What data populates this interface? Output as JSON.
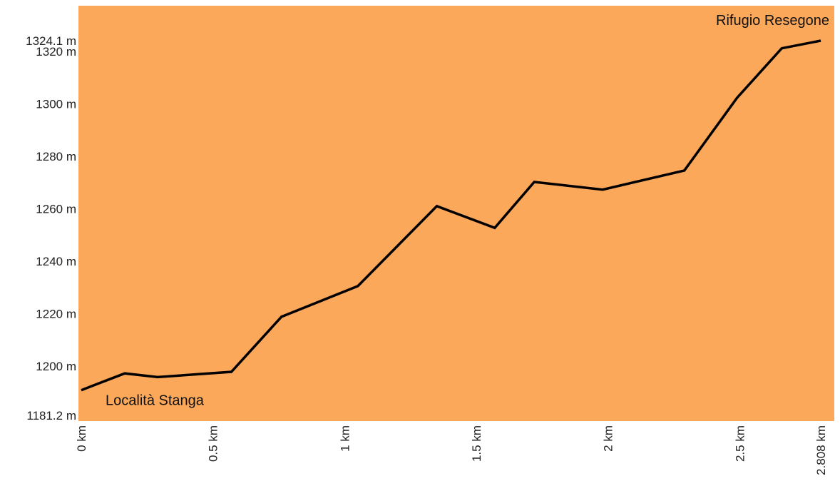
{
  "chart_data": {
    "type": "area",
    "title": "",
    "xlabel": "",
    "ylabel": "",
    "x_unit": "km",
    "y_unit": "m",
    "xlim": [
      0,
      2.808
    ],
    "ylim": [
      1181.2,
      1324.1
    ],
    "x_ticks": [
      {
        "value": 0,
        "label": "0 km"
      },
      {
        "value": 0.5,
        "label": "0.5 km"
      },
      {
        "value": 1,
        "label": "1 km"
      },
      {
        "value": 1.5,
        "label": "1.5 km"
      },
      {
        "value": 2,
        "label": "2 km"
      },
      {
        "value": 2.5,
        "label": "2.5 km"
      },
      {
        "value": 2.808,
        "label": "2.808 km"
      }
    ],
    "y_ticks": [
      {
        "value": 1181.2,
        "label": "1181.2 m"
      },
      {
        "value": 1200,
        "label": "1200 m"
      },
      {
        "value": 1220,
        "label": "1220 m"
      },
      {
        "value": 1240,
        "label": "1240 m"
      },
      {
        "value": 1260,
        "label": "1260 m"
      },
      {
        "value": 1280,
        "label": "1280 m"
      },
      {
        "value": 1300,
        "label": "1300 m"
      },
      {
        "value": 1320,
        "label": "1320 m"
      },
      {
        "value": 1324.1,
        "label": "1324.1 m"
      }
    ],
    "grid": false,
    "legend": "none",
    "series": [
      {
        "x": [
          0,
          0.165,
          0.29,
          0.57,
          0.76,
          1.05,
          1.35,
          1.57,
          1.72,
          1.98,
          2.29,
          2.49,
          2.66,
          2.808
        ],
        "y": [
          1190.8,
          1197.2,
          1195.8,
          1197.8,
          1218.8,
          1230.5,
          1261.0,
          1252.7,
          1270.2,
          1267.3,
          1274.6,
          1302.3,
          1321.2,
          1324.1
        ]
      }
    ],
    "annotations": [
      {
        "text": "Località Stanga",
        "x": 0,
        "y": 1190.8
      },
      {
        "text": "Rifugio Resegone",
        "x": 2.808,
        "y": 1324.1
      }
    ],
    "colors": {
      "fill": "#FCA85A",
      "line": "#000000",
      "background": "#FFFFFF"
    }
  }
}
